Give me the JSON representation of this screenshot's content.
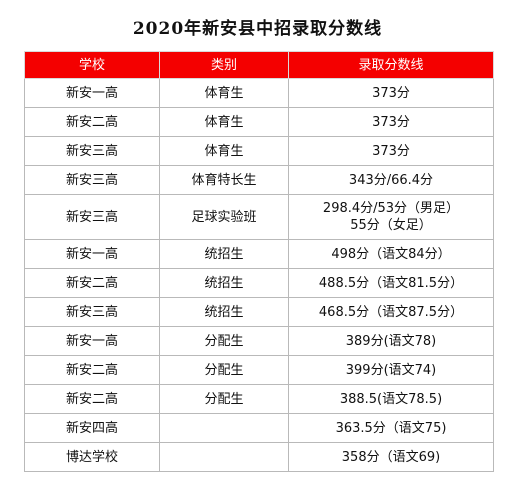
{
  "title": "2020年新安县中招录取分数线",
  "header": {
    "school": "学校",
    "category": "类别",
    "score": "录取分数线"
  },
  "colors": {
    "header_bg": "#f40000",
    "header_text": "#ffffff",
    "grid": "#b9b9b9"
  },
  "rows": [
    {
      "school": "新安一高",
      "category": "体育生",
      "score": [
        "373分"
      ]
    },
    {
      "school": "新安二高",
      "category": "体育生",
      "score": [
        "373分"
      ]
    },
    {
      "school": "新安三高",
      "category": "体育生",
      "score": [
        "373分"
      ]
    },
    {
      "school": "新安三高",
      "category": "体育特长生",
      "score": [
        "343分/66.4分"
      ]
    },
    {
      "school": "新安三高",
      "category": "足球实验班",
      "score": [
        "298.4分/53分（男足）",
        "55分（女足）"
      ]
    },
    {
      "school": "新安一高",
      "category": "统招生",
      "score": [
        "498分（语文84分）"
      ]
    },
    {
      "school": "新安二高",
      "category": "统招生",
      "score": [
        "488.5分（语文81.5分）"
      ]
    },
    {
      "school": "新安三高",
      "category": "统招生",
      "score": [
        "468.5分（语文87.5分）"
      ]
    },
    {
      "school": "新安一高",
      "category": "分配生",
      "score": [
        "389分(语文78)"
      ]
    },
    {
      "school": "新安二高",
      "category": "分配生",
      "score": [
        "399分(语文74)"
      ]
    },
    {
      "school": "新安二高",
      "category": "分配生",
      "score": [
        "388.5(语文78.5)"
      ]
    },
    {
      "school": "新安四高",
      "category": "",
      "score": [
        "363.5分（语文75)"
      ]
    },
    {
      "school": "博达学校",
      "category": "",
      "score": [
        "358分（语文69)"
      ]
    }
  ]
}
